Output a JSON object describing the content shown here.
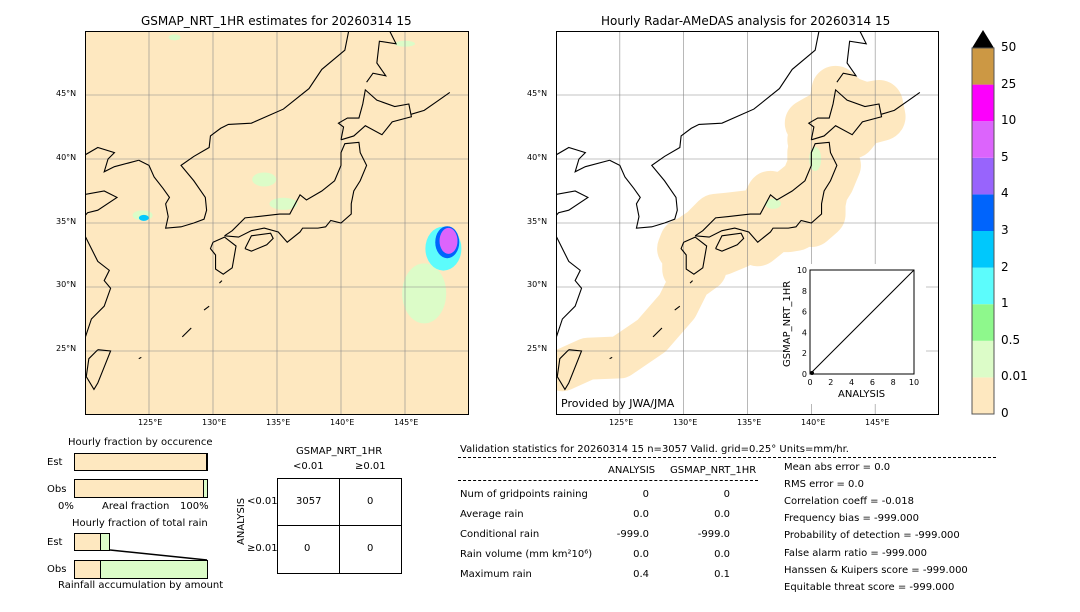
{
  "left_map": {
    "title": "GSMAP_NRT_1HR estimates for 20260314 15"
  },
  "right_map": {
    "title": "Hourly Radar-AMeDAS analysis for 20260314 15",
    "credit": "Provided by JWA/JMA"
  },
  "lon_labels": [
    "125°E",
    "130°E",
    "135°E",
    "140°E",
    "145°E"
  ],
  "lat_labels": [
    "45°N",
    "40°N",
    "35°N",
    "30°N",
    "25°N"
  ],
  "colorbar": {
    "labels": [
      "0",
      "0.01",
      "0.5",
      "1",
      "2",
      "3",
      "4",
      "5",
      "10",
      "25",
      "50"
    ],
    "colors": [
      "#fee8c0",
      "#dcfcc8",
      "#8ef88c",
      "#5cfcfc",
      "#00c8fc",
      "#0064fc",
      "#9864fc",
      "#dc64fc",
      "#fc00fc",
      "#cc9844"
    ],
    "extend_color": "#000000"
  },
  "inset": {
    "xlabel": "ANALYSIS",
    "ylabel": "GSMAP_NRT_1HR",
    "ticks": [
      "0",
      "2",
      "4",
      "6",
      "8",
      "10"
    ]
  },
  "chart_data": [
    {
      "type": "bar",
      "title": "Hourly fraction by occurence",
      "xlabel": "Areal fraction",
      "xtick_left": "0%",
      "xtick_right": "100%",
      "categories": [
        "Est",
        "Obs"
      ],
      "series": [
        {
          "values": [
            99,
            97
          ]
        }
      ]
    },
    {
      "type": "bar",
      "title": "Hourly fraction of total rain",
      "xlabel": "Rainfall accumulation by amount",
      "categories": [
        "Est",
        "Obs"
      ]
    },
    {
      "type": "table",
      "title": "GSMAP_NRT_1HR",
      "col_labels": [
        "<0.01",
        "≥0.01"
      ],
      "row_title": "ANALYSIS",
      "row_labels": [
        "<0.01",
        "≥0.01"
      ],
      "cells": [
        [
          "3057",
          "0"
        ],
        [
          "0",
          "0"
        ]
      ]
    }
  ],
  "stats": {
    "header": "Validation statistics for 20260314 15  n=3057 Valid. grid=0.25° Units=mm/hr.",
    "col1": "ANALYSIS",
    "col2": "GSMAP_NRT_1HR",
    "rows": [
      {
        "label": "Num of gridpoints raining",
        "a": "0",
        "g": "0"
      },
      {
        "label": "Average rain",
        "a": "0.0",
        "g": "0.0"
      },
      {
        "label": "Conditional rain",
        "a": "-999.0",
        "g": "-999.0"
      },
      {
        "label": "Rain volume (mm km²10⁶)",
        "a": "0.0",
        "g": "0.0"
      },
      {
        "label": "Maximum rain",
        "a": "0.4",
        "g": "0.1"
      }
    ],
    "scores": [
      "Mean abs error =    0.0",
      "RMS error =    0.0",
      "Correlation coeff = -0.018",
      "Frequency bias = -999.000",
      "Probability of detection = -999.000",
      "False alarm ratio = -999.000",
      "Hanssen & Kuipers score = -999.000",
      "Equitable threat score = -999.000"
    ]
  }
}
